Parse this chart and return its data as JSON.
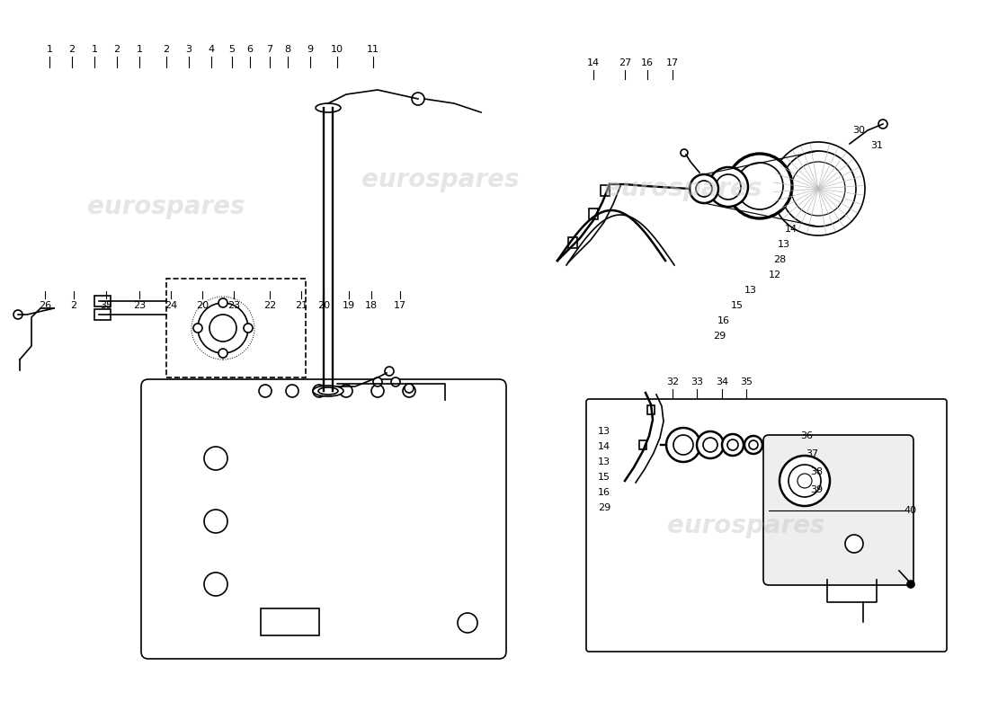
{
  "bg_color": "#ffffff",
  "line_color": "#000000",
  "watermark_color": "#cccccc",
  "watermark_text": "eurospares",
  "fig_width": 11.0,
  "fig_height": 8.0,
  "dpi": 100,
  "top_labels_left": [
    [
      55,
      "1"
    ],
    [
      80,
      "2"
    ],
    [
      105,
      "1"
    ],
    [
      130,
      "2"
    ],
    [
      155,
      "1"
    ],
    [
      185,
      "2"
    ],
    [
      210,
      "3"
    ],
    [
      235,
      "4"
    ],
    [
      258,
      "5"
    ],
    [
      278,
      "6"
    ],
    [
      300,
      "7"
    ],
    [
      320,
      "8"
    ],
    [
      345,
      "9"
    ],
    [
      375,
      "10"
    ],
    [
      415,
      "11"
    ]
  ],
  "bottom_labels_left": [
    [
      50,
      "26"
    ],
    [
      82,
      "2"
    ],
    [
      118,
      "35"
    ],
    [
      155,
      "23"
    ],
    [
      190,
      "24"
    ],
    [
      225,
      "20"
    ],
    [
      260,
      "23"
    ],
    [
      300,
      "22"
    ],
    [
      335,
      "21"
    ],
    [
      360,
      "20"
    ],
    [
      388,
      "19"
    ],
    [
      413,
      "18"
    ],
    [
      445,
      "17"
    ]
  ],
  "top_labels_right": [
    [
      660,
      "14"
    ],
    [
      695,
      "27"
    ],
    [
      720,
      "16"
    ],
    [
      748,
      "17"
    ]
  ],
  "right_callouts": [
    [
      955,
      655,
      "30"
    ],
    [
      975,
      638,
      "31"
    ],
    [
      880,
      545,
      "14"
    ],
    [
      872,
      528,
      "13"
    ],
    [
      867,
      511,
      "28"
    ],
    [
      862,
      494,
      "12"
    ],
    [
      835,
      477,
      "13"
    ],
    [
      820,
      460,
      "15"
    ],
    [
      805,
      443,
      "16"
    ],
    [
      800,
      426,
      "29"
    ]
  ],
  "inset_top_labels": [
    [
      748,
      "32"
    ],
    [
      775,
      "33"
    ],
    [
      803,
      "34"
    ],
    [
      830,
      "35"
    ]
  ],
  "inset_left_labels": [
    [
      672,
      320,
      "13"
    ],
    [
      672,
      303,
      "14"
    ],
    [
      672,
      286,
      "13"
    ],
    [
      672,
      269,
      "15"
    ],
    [
      672,
      252,
      "16"
    ],
    [
      672,
      235,
      "29"
    ]
  ],
  "inset_right_labels": [
    [
      897,
      315,
      "36"
    ],
    [
      903,
      295,
      "37"
    ],
    [
      908,
      275,
      "38"
    ],
    [
      908,
      255,
      "39"
    ],
    [
      1012,
      232,
      "40"
    ]
  ]
}
